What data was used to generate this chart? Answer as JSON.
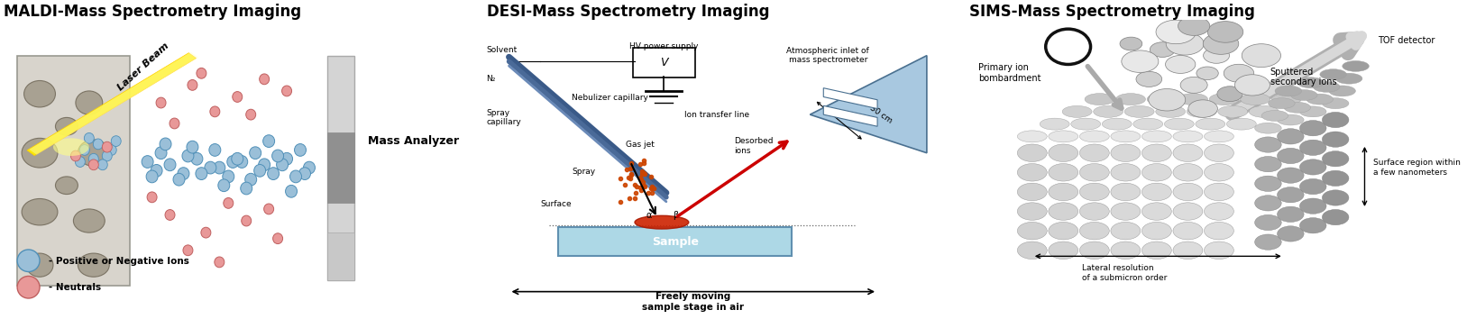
{
  "title_maldi": "MALDI-Mass Spectrometry Imaging",
  "title_desi": "DESI-Mass Spectrometry Imaging",
  "title_sims": "SIMS-Mass Spectrometry Imaging",
  "title_fontsize": 12,
  "title_fontweight": "bold",
  "bg_color": "#ffffff",
  "maldi": {
    "tissue_color": "#d8d4cc",
    "tissue_edge": "#999990",
    "cell_color": "#a09888",
    "cell_edge": "#706858",
    "detector_color": "#d8d8d8",
    "detector_mid": "#aaaaaa",
    "laser_color_outer": "#ffee00",
    "laser_color_inner": "#ffff88",
    "blue_ion_face": "#9abfd8",
    "blue_ion_edge": "#5090b8",
    "red_ion_face": "#e89898",
    "red_ion_edge": "#c06060",
    "arrow_color": "#00aaee",
    "label_mass_analyzer": "Mass Analyzer",
    "label_laser": "Laser Beam",
    "label_pos_neg": "- Positive or Negative Ions",
    "label_neutrals": "- Neutrals"
  },
  "desi": {
    "label_hv": "HV power supply",
    "label_solvent": "Solvent",
    "label_n2": "N₂",
    "label_nebulizer": "Nebulizer capillary",
    "label_spray_cap": "Spray\ncapillary",
    "label_gas_jet": "Gas jet",
    "label_spray": "Spray",
    "label_surface": "Surface",
    "label_desorbed": "Desorbed\nions",
    "label_30cm": "30 cm",
    "label_atm": "Atmospheric inlet of\nmass spectrometer",
    "label_ion_transfer": "Ion transfer line",
    "label_sample": "Sample",
    "label_freely": "Freely moving\nsample stage in air",
    "sample_color": "#add8e6",
    "spray_dot_color": "#cc4400",
    "capillary_dark": "#3a5a88",
    "capillary_mid": "#6080a8",
    "inlet_color": "#a8c8e0",
    "inlet_edge": "#4a7090"
  },
  "sims": {
    "label_tof": "TOF detector",
    "label_primary": "Primary ion\nbombardment",
    "label_sputtered": "Sputtered\nsecondary ions",
    "label_surface_region": "Surface region within\na few nanometers",
    "label_lateral": "Lateral resolution\nof a submicron order",
    "sphere_light": "#e0e0e0",
    "sphere_mid": "#c0c0c0",
    "sphere_dark": "#909090",
    "tof_arrow_color": "#c0c0c0"
  }
}
